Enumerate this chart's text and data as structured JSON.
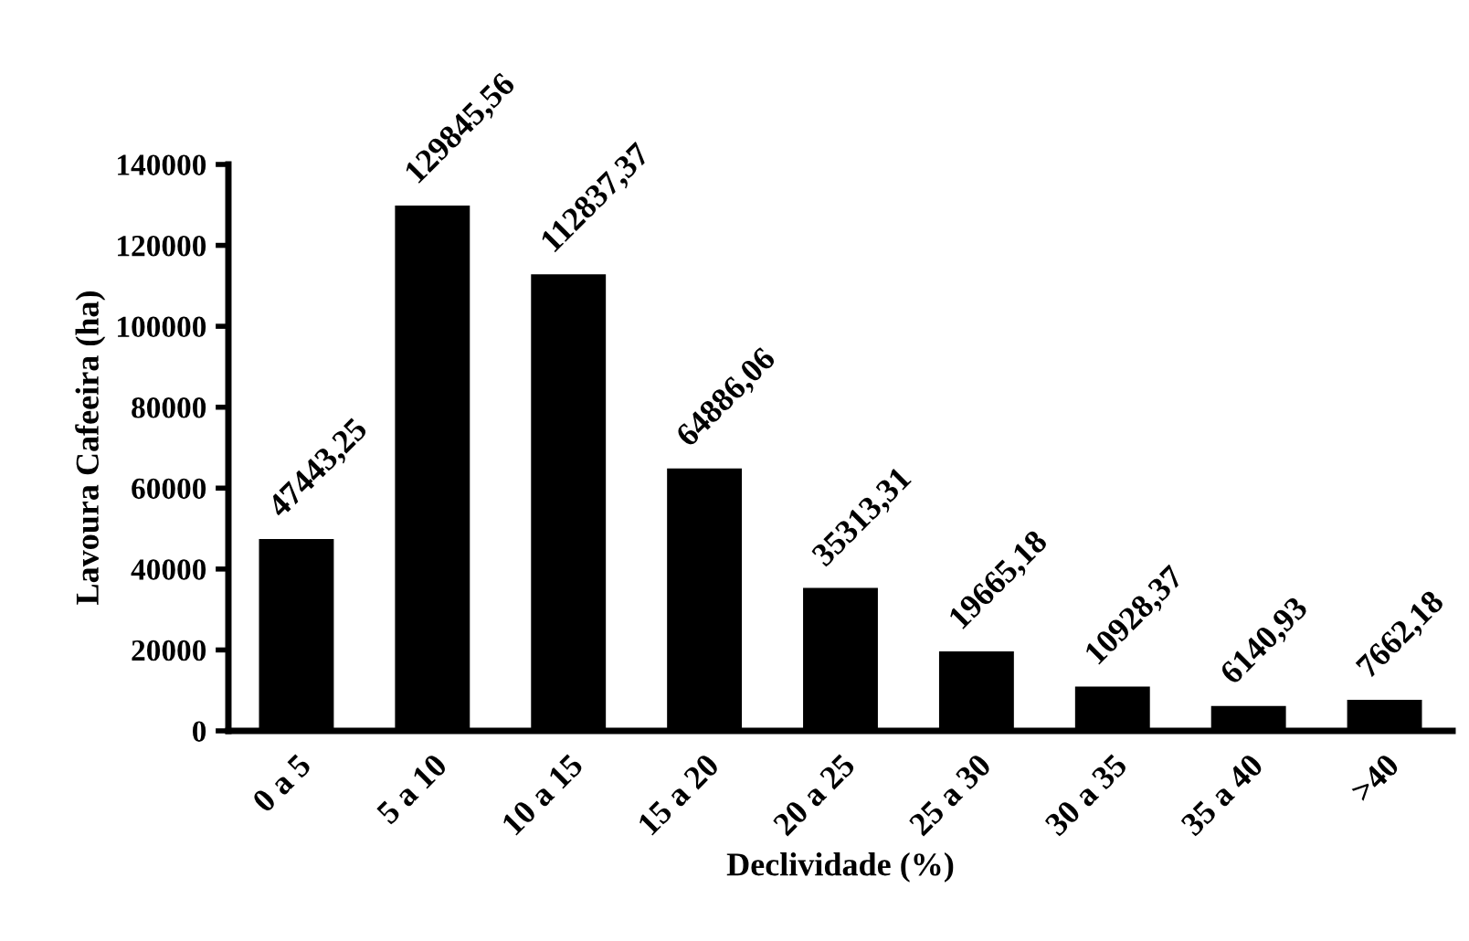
{
  "chart_data": {
    "type": "bar",
    "xlabel": "Declividade (%)",
    "ylabel": "Lavoura Cafeeira (ha)",
    "categories": [
      "0 a 5",
      "5 a 10",
      "10 a 15",
      "15 a 20",
      "20 a 25",
      "25 a 30",
      "30 a 35",
      "35 a 40",
      ">40"
    ],
    "values": [
      47443.25,
      129845.56,
      112837.37,
      64886.06,
      35313.31,
      19665.18,
      10928.37,
      6140.93,
      7662.18
    ],
    "value_labels": [
      "47443,25",
      "129845,56",
      "112837,37",
      "64886,06",
      "35313,31",
      "19665,18",
      "10928,37",
      "6140,93",
      "7662,18"
    ],
    "color": "#000000",
    "ylim": [
      0,
      140000
    ],
    "yticks": [
      0,
      20000,
      40000,
      60000,
      80000,
      100000,
      120000,
      140000
    ],
    "grid": false,
    "legend": false
  }
}
